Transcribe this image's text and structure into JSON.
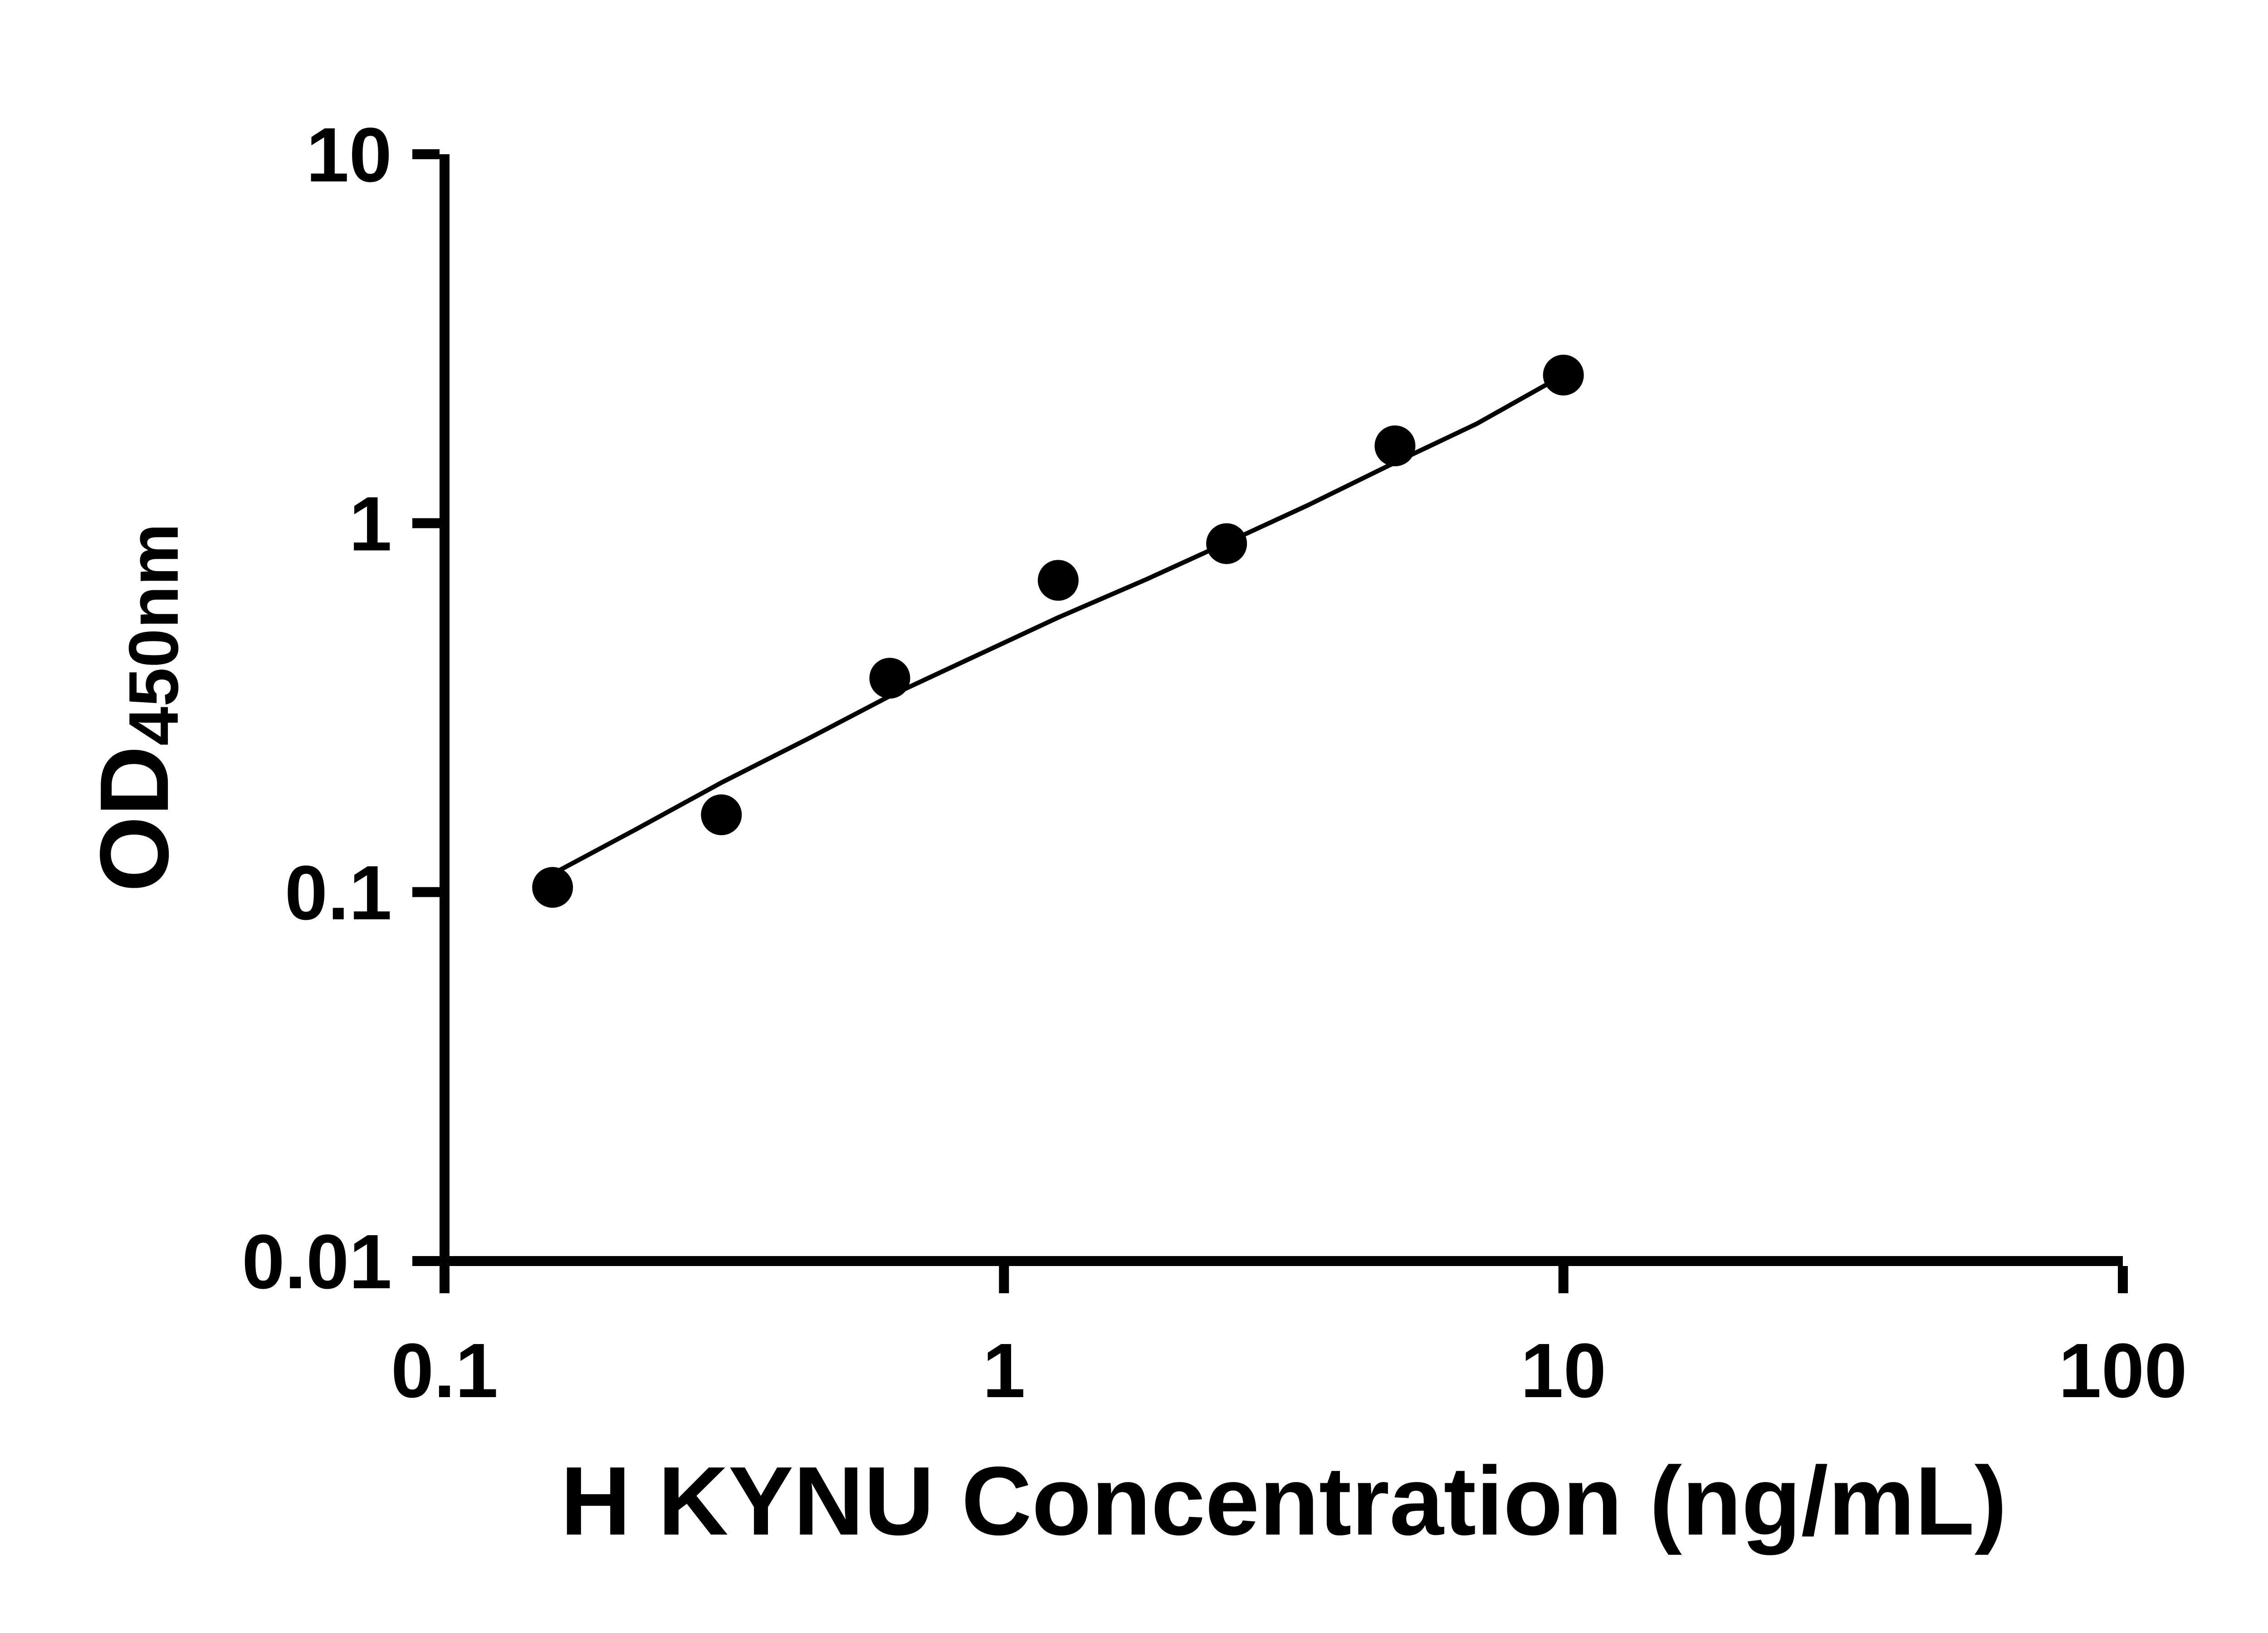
{
  "chart_data": {
    "type": "scatter",
    "title": "",
    "xlabel": "H KYNU Concentration (ng/mL)",
    "ylabel": "OD450nm",
    "ylabel_base": "OD",
    "ylabel_subscript": "450nm",
    "x_scale": "log",
    "y_scale": "log",
    "xlim": [
      0.1,
      100
    ],
    "ylim": [
      0.01,
      10
    ],
    "grid": false,
    "legend": false,
    "x_ticks": [
      {
        "value": 0.1,
        "label": "0.1"
      },
      {
        "value": 1,
        "label": "1"
      },
      {
        "value": 10,
        "label": "10"
      },
      {
        "value": 100,
        "label": "100"
      }
    ],
    "y_ticks": [
      {
        "value": 0.01,
        "label": "0.01"
      },
      {
        "value": 0.1,
        "label": "0.1"
      },
      {
        "value": 1,
        "label": "1"
      },
      {
        "value": 10,
        "label": "10"
      }
    ],
    "series": [
      {
        "marker": "filled-circle",
        "x": [
          0.156,
          0.3125,
          0.625,
          1.25,
          2.5,
          5,
          10
        ],
        "y": [
          0.103,
          0.162,
          0.38,
          0.7,
          0.88,
          1.62,
          2.52
        ]
      }
    ],
    "trend_line": [
      [
        0.156,
        0.112
      ],
      [
        0.22,
        0.148
      ],
      [
        0.3125,
        0.198
      ],
      [
        0.45,
        0.262
      ],
      [
        0.625,
        0.34
      ],
      [
        0.9,
        0.44
      ],
      [
        1.25,
        0.555
      ],
      [
        1.8,
        0.705
      ],
      [
        2.5,
        0.885
      ],
      [
        3.5,
        1.12
      ],
      [
        5,
        1.46
      ],
      [
        7,
        1.86
      ],
      [
        10,
        2.52
      ]
    ],
    "colors": {
      "axis": "#000000",
      "marker": "#000000",
      "line": "#000000",
      "text": "#000000",
      "background": "#ffffff"
    }
  }
}
